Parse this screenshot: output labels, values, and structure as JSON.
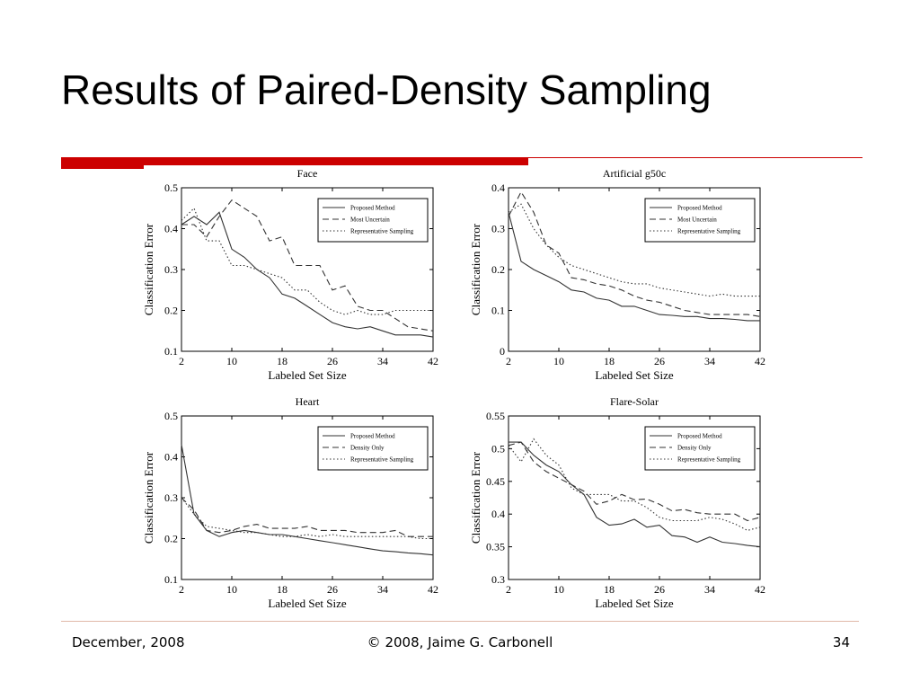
{
  "slide": {
    "title": "Results of Paired-Density Sampling",
    "footer": {
      "date": "December, 2008",
      "copyright": "© 2008, Jaime G. Carbonell",
      "page": "34"
    },
    "accent_color": "#cc0000"
  },
  "chart_data": [
    {
      "type": "line",
      "title": "Face",
      "xlabel": "Labeled Set Size",
      "ylabel": "Classification Error",
      "xlim": [
        2,
        42
      ],
      "ylim": [
        0.1,
        0.5
      ],
      "xticks": [
        2,
        10,
        18,
        26,
        34,
        42
      ],
      "yticks": [
        "0.1",
        "0.2",
        "0.3",
        "0.4",
        "0.5"
      ],
      "legend_position": "top-right",
      "x": [
        2,
        4,
        6,
        8,
        10,
        12,
        14,
        16,
        18,
        20,
        22,
        24,
        26,
        28,
        30,
        32,
        34,
        36,
        38,
        40,
        42
      ],
      "series": [
        {
          "name": "Proposed Method",
          "style": "solid",
          "values": [
            0.41,
            0.43,
            0.41,
            0.44,
            0.35,
            0.33,
            0.3,
            0.28,
            0.24,
            0.23,
            0.21,
            0.19,
            0.17,
            0.16,
            0.155,
            0.16,
            0.15,
            0.14,
            0.14,
            0.14,
            0.135
          ]
        },
        {
          "name": "Most Uncertain",
          "style": "dashed",
          "values": [
            0.41,
            0.41,
            0.38,
            0.43,
            0.47,
            0.45,
            0.43,
            0.37,
            0.38,
            0.31,
            0.31,
            0.31,
            0.25,
            0.26,
            0.21,
            0.2,
            0.2,
            0.18,
            0.16,
            0.155,
            0.15
          ]
        },
        {
          "name": "Representative Sampling",
          "style": "dotted",
          "values": [
            0.42,
            0.45,
            0.37,
            0.37,
            0.31,
            0.31,
            0.3,
            0.29,
            0.28,
            0.25,
            0.25,
            0.22,
            0.2,
            0.19,
            0.2,
            0.19,
            0.19,
            0.2,
            0.2,
            0.2,
            0.2
          ]
        }
      ]
    },
    {
      "type": "line",
      "title": "Artificial g50c",
      "xlabel": "Labeled Set Size",
      "ylabel": "Classification Error",
      "xlim": [
        2,
        42
      ],
      "ylim": [
        0,
        0.4
      ],
      "xticks": [
        2,
        10,
        18,
        26,
        34,
        42
      ],
      "yticks": [
        "0",
        "0.1",
        "0.2",
        "0.3",
        "0.4"
      ],
      "legend_position": "top-right",
      "x": [
        2,
        4,
        6,
        8,
        10,
        12,
        14,
        16,
        18,
        20,
        22,
        24,
        26,
        28,
        30,
        32,
        34,
        36,
        38,
        40,
        42
      ],
      "series": [
        {
          "name": "Proposed Method",
          "style": "solid",
          "values": [
            0.34,
            0.22,
            0.2,
            0.185,
            0.17,
            0.15,
            0.145,
            0.13,
            0.125,
            0.11,
            0.11,
            0.1,
            0.09,
            0.088,
            0.085,
            0.085,
            0.08,
            0.08,
            0.078,
            0.075,
            0.075
          ]
        },
        {
          "name": "Most Uncertain",
          "style": "dashed",
          "values": [
            0.33,
            0.39,
            0.34,
            0.26,
            0.24,
            0.18,
            0.175,
            0.165,
            0.16,
            0.15,
            0.135,
            0.125,
            0.12,
            0.11,
            0.1,
            0.095,
            0.09,
            0.09,
            0.09,
            0.09,
            0.085
          ]
        },
        {
          "name": "Representative Sampling",
          "style": "dotted",
          "values": [
            0.34,
            0.36,
            0.3,
            0.26,
            0.23,
            0.21,
            0.2,
            0.19,
            0.18,
            0.17,
            0.165,
            0.165,
            0.155,
            0.15,
            0.145,
            0.14,
            0.135,
            0.14,
            0.135,
            0.135,
            0.135
          ]
        }
      ]
    },
    {
      "type": "line",
      "title": "Heart",
      "xlabel": "Labeled Set Size",
      "ylabel": "Classification Error",
      "xlim": [
        2,
        42
      ],
      "ylim": [
        0.1,
        0.5
      ],
      "xticks": [
        2,
        10,
        18,
        26,
        34,
        42
      ],
      "yticks": [
        "0.1",
        "0.2",
        "0.3",
        "0.4",
        "0.5"
      ],
      "legend_position": "top-right",
      "x": [
        2,
        4,
        6,
        8,
        10,
        12,
        14,
        16,
        18,
        20,
        22,
        24,
        26,
        28,
        30,
        32,
        34,
        36,
        38,
        40,
        42
      ],
      "series": [
        {
          "name": "Proposed Method",
          "style": "solid",
          "values": [
            0.43,
            0.26,
            0.22,
            0.205,
            0.215,
            0.22,
            0.215,
            0.21,
            0.21,
            0.205,
            0.2,
            0.195,
            0.19,
            0.185,
            0.18,
            0.175,
            0.17,
            0.168,
            0.165,
            0.163,
            0.16
          ]
        },
        {
          "name": "Density Only",
          "style": "dashed",
          "values": [
            0.3,
            0.27,
            0.22,
            0.215,
            0.22,
            0.23,
            0.235,
            0.225,
            0.225,
            0.225,
            0.23,
            0.22,
            0.22,
            0.22,
            0.215,
            0.215,
            0.215,
            0.22,
            0.205,
            0.205,
            0.205
          ]
        },
        {
          "name": "Representative Sampling",
          "style": "dotted",
          "values": [
            0.3,
            0.26,
            0.23,
            0.225,
            0.22,
            0.215,
            0.215,
            0.21,
            0.205,
            0.205,
            0.21,
            0.205,
            0.21,
            0.205,
            0.205,
            0.205,
            0.205,
            0.205,
            0.205,
            0.2,
            0.2
          ]
        }
      ]
    },
    {
      "type": "line",
      "title": "Flare-Solar",
      "xlabel": "Labeled Set Size",
      "ylabel": "Classification Error",
      "xlim": [
        2,
        42
      ],
      "ylim": [
        0.3,
        0.55
      ],
      "xticks": [
        2,
        10,
        18,
        26,
        34,
        42
      ],
      "yticks": [
        "0.3",
        "0.35",
        "0.4",
        "0.45",
        "0.5",
        "0.55"
      ],
      "legend_position": "top-right",
      "x": [
        2,
        4,
        6,
        8,
        10,
        12,
        14,
        16,
        18,
        20,
        22,
        24,
        26,
        28,
        30,
        32,
        34,
        36,
        38,
        40,
        42
      ],
      "series": [
        {
          "name": "Proposed Method",
          "style": "solid",
          "values": [
            0.51,
            0.51,
            0.49,
            0.475,
            0.465,
            0.445,
            0.43,
            0.395,
            0.383,
            0.385,
            0.392,
            0.38,
            0.383,
            0.367,
            0.365,
            0.357,
            0.365,
            0.357,
            0.355,
            0.352,
            0.35
          ]
        },
        {
          "name": "Density Only",
          "style": "dashed",
          "values": [
            0.505,
            0.51,
            0.48,
            0.465,
            0.455,
            0.445,
            0.435,
            0.415,
            0.42,
            0.43,
            0.422,
            0.423,
            0.415,
            0.405,
            0.407,
            0.402,
            0.4,
            0.4,
            0.4,
            0.39,
            0.395
          ]
        },
        {
          "name": "Representative Sampling",
          "style": "dotted",
          "values": [
            0.505,
            0.48,
            0.515,
            0.49,
            0.475,
            0.44,
            0.43,
            0.43,
            0.43,
            0.42,
            0.42,
            0.41,
            0.395,
            0.39,
            0.39,
            0.39,
            0.395,
            0.392,
            0.385,
            0.375,
            0.38
          ]
        }
      ]
    }
  ]
}
